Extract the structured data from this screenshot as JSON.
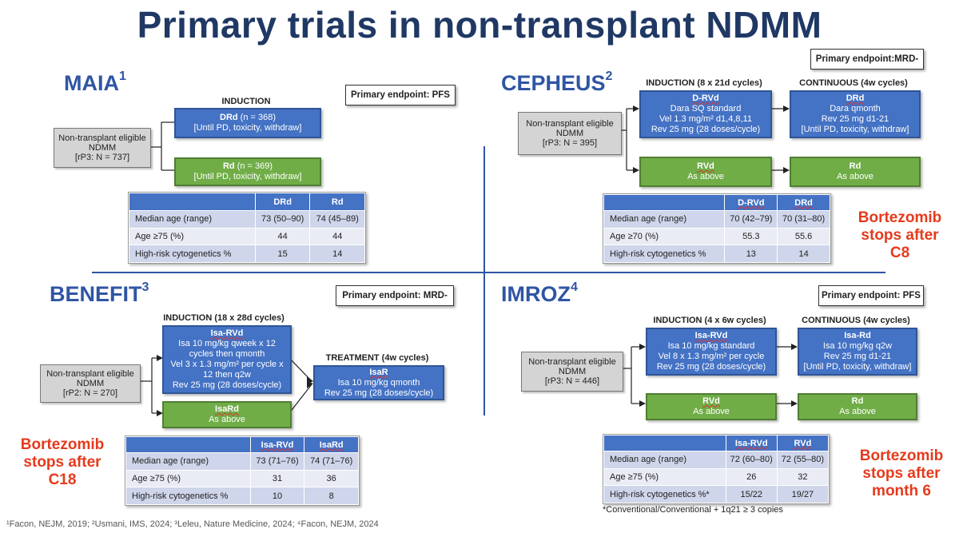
{
  "title": "Primary trials in non-transplant NDMM",
  "maia": {
    "name": "MAIA",
    "ref": "1",
    "endpoint": "Primary endpoint: PFS",
    "induction_header": "INDUCTION",
    "patients": [
      "Non-transplant eligible",
      "NDMM",
      "[rP3: N = 737]"
    ],
    "arm1": {
      "title": "DRd",
      "n": " (n = 368)",
      "line2": "[Until PD, toxicity, withdraw]"
    },
    "arm2": {
      "title": "Rd",
      "n": " (n = 369)",
      "line2": "[Until PD, toxicity, withdraw]"
    },
    "table": {
      "headers": [
        "",
        "DRd",
        "Rd"
      ],
      "rows": [
        [
          "Median age (range)",
          "73 (50–90)",
          "74 (45–89)"
        ],
        [
          "Age ≥75 (%)",
          "44",
          "44"
        ],
        [
          "High-risk cytogenetics %",
          "15",
          "14"
        ]
      ]
    }
  },
  "cepheus": {
    "name": "CEPHEUS",
    "ref": "2",
    "endpoint": "Primary endpoint:MRD-",
    "induction_header": "INDUCTION (8 x 21d cycles)",
    "continuous_header": "CONTINUOUS (4w cycles)",
    "patients": [
      "Non-transplant eligible",
      "NDMM",
      "[rP3: N = 395]"
    ],
    "ind1": [
      "D-RVd",
      "Dara SQ standard",
      "Vel 1.3 mg/m² d1,4,8,11",
      "Rev 25 mg (28 doses/cycle)"
    ],
    "cont1": [
      "DRd",
      "Dara qmonth",
      "Rev 25 mg d1-21",
      "[Until PD, toxicity, withdraw]"
    ],
    "ind2": [
      "RVd",
      "As above"
    ],
    "cont2": [
      "Rd",
      "As above"
    ],
    "table": {
      "headers": [
        "",
        "D-RVd",
        "DRd"
      ],
      "rows": [
        [
          "Median age (range)",
          "70 (42–79)",
          "70 (31–80)"
        ],
        [
          "Age ≥70 (%)",
          "55.3",
          "55.6"
        ],
        [
          "High-risk cytogenetics %",
          "13",
          "14"
        ]
      ]
    },
    "note": [
      "Bortezomib",
      "stops after",
      "C8"
    ]
  },
  "benefit": {
    "name": "BENEFIT",
    "ref": "3",
    "endpoint": "Primary endpoint: MRD-",
    "induction_header": "INDUCTION (18 x 28d cycles)",
    "treatment_header": "TREATMENT (4w cycles)",
    "patients": [
      "Non-transplant eligible",
      "NDMM",
      "[rP2: N = 270]"
    ],
    "ind1": [
      "Isa-RVd",
      "Isa 10 mg/kg qweek x 12",
      "cycles then qmonth",
      "Vel 3 x 1.3 mg/m² per cycle x",
      "12 then q2w",
      "Rev 25 mg (28 doses/cycle)"
    ],
    "ind2": [
      "IsaRd",
      "As above"
    ],
    "treat": [
      "IsaR",
      "Isa 10 mg/kg qmonth",
      "Rev 25 mg (28 doses/cycle)"
    ],
    "table": {
      "headers": [
        "",
        "Isa-RVd",
        "IsaRd"
      ],
      "rows": [
        [
          "Median age (range)",
          "73 (71–76)",
          "74 (71–76)"
        ],
        [
          "Age ≥75 (%)",
          "31",
          "36"
        ],
        [
          "High-risk cytogenetics %",
          "10",
          "8"
        ]
      ]
    },
    "note": [
      "Bortezomib",
      "stops after",
      "C18"
    ]
  },
  "imroz": {
    "name": "IMROZ",
    "ref": "4",
    "endpoint": "Primary endpoint: PFS",
    "induction_header": "INDUCTION (4 x 6w cycles)",
    "continuous_header": "CONTINUOUS (4w cycles)",
    "patients": [
      "Non-transplant eligible",
      "NDMM",
      "[rP3: N = 446]"
    ],
    "ind1": [
      "Isa-RVd",
      "Isa 10 mg/kg standard",
      "Vel 8 x 1.3 mg/m² per cycle",
      "Rev 25 mg (28 doses/cycle)"
    ],
    "cont1": [
      "Isa-Rd",
      "Isa 10 mg/kg q2w",
      "Rev 25 mg d1-21",
      "[Until PD, toxicity, withdraw]"
    ],
    "ind2": [
      "RVd",
      "As above"
    ],
    "cont2": [
      "Rd",
      "As above"
    ],
    "table": {
      "headers": [
        "",
        "Isa-RVd",
        "RVd"
      ],
      "rows": [
        [
          "Median age (range)",
          "72 (60–80)",
          "72 (55–80)"
        ],
        [
          "Age ≥75 (%)",
          "26",
          "32"
        ],
        [
          "High-risk cytogenetics %*",
          "15/22",
          "19/27"
        ]
      ]
    },
    "note": [
      "Bortezomib",
      "stops after",
      "month 6"
    ],
    "footnote": "*Conventional/Conventional + 1q21 ≥ 3 copies"
  },
  "references": "¹Facon, NEJM, 2019; ²Usmani, IMS, 2024; ³Leleu, Nature Medicine, 2024; ⁴Facon, NEJM, 2024"
}
